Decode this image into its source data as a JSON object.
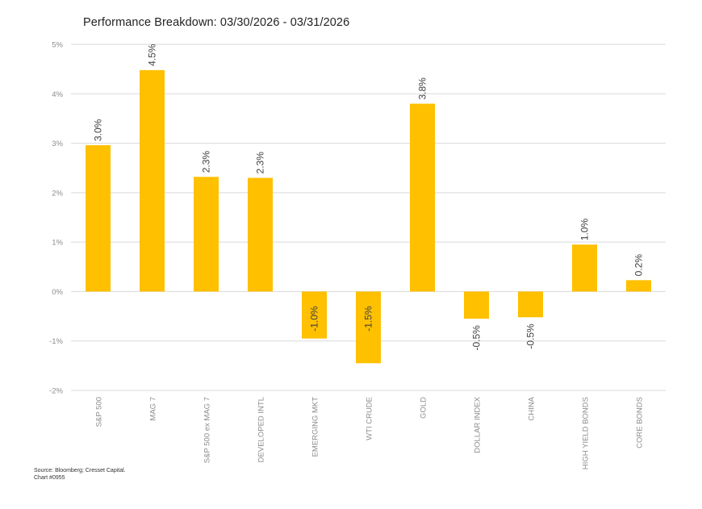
{
  "title": "Performance Breakdown: 03/30/2026 - 03/31/2026",
  "source": {
    "line1": "Source: Bloomberg; Cresset Capital.",
    "line2": "Chart #0955"
  },
  "colors": {
    "bar": "#FFC000",
    "grid": "#D9D9D9",
    "tick_text": "#8C8C8C",
    "label_text": "#404040"
  },
  "chart_data": {
    "type": "bar",
    "title": "Performance Breakdown: 03/30/2026 - 03/31/2026",
    "xlabel": "",
    "ylabel": "",
    "ylim": [
      -2,
      5
    ],
    "yticks": [
      -2,
      -1,
      0,
      1,
      2,
      3,
      4,
      5
    ],
    "ytick_labels": [
      "-2%",
      "-1%",
      "0%",
      "1%",
      "2%",
      "3%",
      "4%",
      "5%"
    ],
    "grid": true,
    "categories": [
      "S&P 500",
      "MAG 7",
      "S&P 500 ex MAG 7",
      "DEVELOPED INTL",
      "EMERGING MKT",
      "WTI CRUDE",
      "GOLD",
      "DOLLAR INDEX",
      "CHINA",
      "HIGH YIELD BONDS",
      "CORE BONDS"
    ],
    "values": [
      2.96,
      4.48,
      2.32,
      2.3,
      -0.95,
      -1.45,
      3.8,
      -0.55,
      -0.52,
      0.95,
      0.23
    ],
    "data_labels": [
      "3.0%",
      "4.5%",
      "2.3%",
      "2.3%",
      "-1.0%",
      "-1.5%",
      "3.8%",
      "-0.5%",
      "-0.5%",
      "1.0%",
      "0.2%"
    ]
  }
}
